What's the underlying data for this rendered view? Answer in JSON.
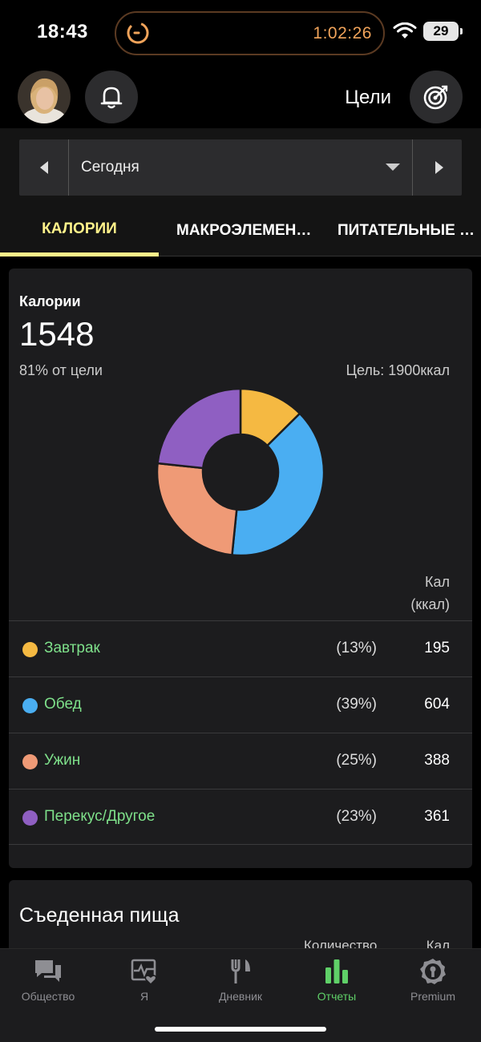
{
  "status_bar": {
    "time": "18:43",
    "timer": "1:02:26",
    "battery": "29"
  },
  "header": {
    "goals_label": "Цели"
  },
  "date_selector": {
    "label": "Сегодня"
  },
  "tabs": [
    {
      "label": "КАЛОРИИ",
      "active": true
    },
    {
      "label": "МАКРОЭЛЕМЕНТЫ",
      "active": false
    },
    {
      "label": "ПИТАТЕЛЬНЫЕ ВЕЩЕСТВА",
      "active": false
    }
  ],
  "calories_card": {
    "title": "Калории",
    "total": "1548",
    "percent_of_goal": "81% от цели",
    "goal": "Цель: 1900ккал",
    "column_header_line1": "Кал",
    "column_header_line2": "(ккал)"
  },
  "chart_data": {
    "type": "pie",
    "title": "Калории",
    "categories": [
      "Завтрак",
      "Обед",
      "Ужин",
      "Перекус/Другое"
    ],
    "values": [
      195,
      604,
      388,
      361
    ],
    "percents": [
      "(13%)",
      "(39%)",
      "(25%)",
      "(23%)"
    ],
    "colors": [
      "#f5b942",
      "#4aaef2",
      "#ef9a76",
      "#8f5fc2"
    ],
    "donut": true
  },
  "food_card": {
    "title": "Съеденная пища",
    "col_quantity": "Количество",
    "col_cal": "Кал"
  },
  "bottom_nav": [
    {
      "label": "Общество",
      "icon": "chat-icon",
      "active": false
    },
    {
      "label": "Я",
      "icon": "heart-pulse-icon",
      "active": false
    },
    {
      "label": "Дневник",
      "icon": "fork-knife-icon",
      "active": false
    },
    {
      "label": "Отчеты",
      "icon": "bar-chart-icon",
      "active": true
    },
    {
      "label": "Premium",
      "icon": "premium-badge-icon",
      "active": false
    }
  ]
}
